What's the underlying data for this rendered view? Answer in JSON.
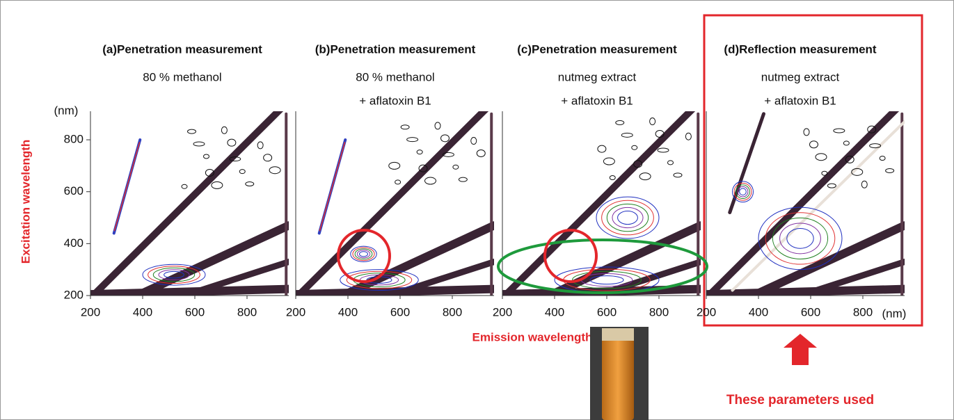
{
  "figure": {
    "y_axis_label": "Excitation wavelength",
    "y_unit": "(nm)",
    "x_axis_label": "Emission wavelength",
    "x_unit": "(nm)",
    "callout": "These parameters used",
    "xlim": [
      200,
      960
    ],
    "ylim": [
      200,
      910
    ],
    "xticks": [
      200,
      400,
      600,
      800
    ],
    "yticks": [
      200,
      400,
      600,
      800
    ],
    "panels": [
      {
        "title": "(a)Penetration measurement",
        "subtitle": [
          "80 % methanol"
        ]
      },
      {
        "title": "(b)Penetration measurement",
        "subtitle": [
          "80 % methanol",
          "+ aflatoxin B1"
        ]
      },
      {
        "title": "(c)Penetration measurement",
        "subtitle": [
          "nutmeg extract",
          "+ aflatoxin B1"
        ]
      },
      {
        "title": "(d)Reflection measurement",
        "subtitle": [
          "nutmeg extract",
          "+ aflatoxin B1"
        ]
      }
    ]
  }
}
